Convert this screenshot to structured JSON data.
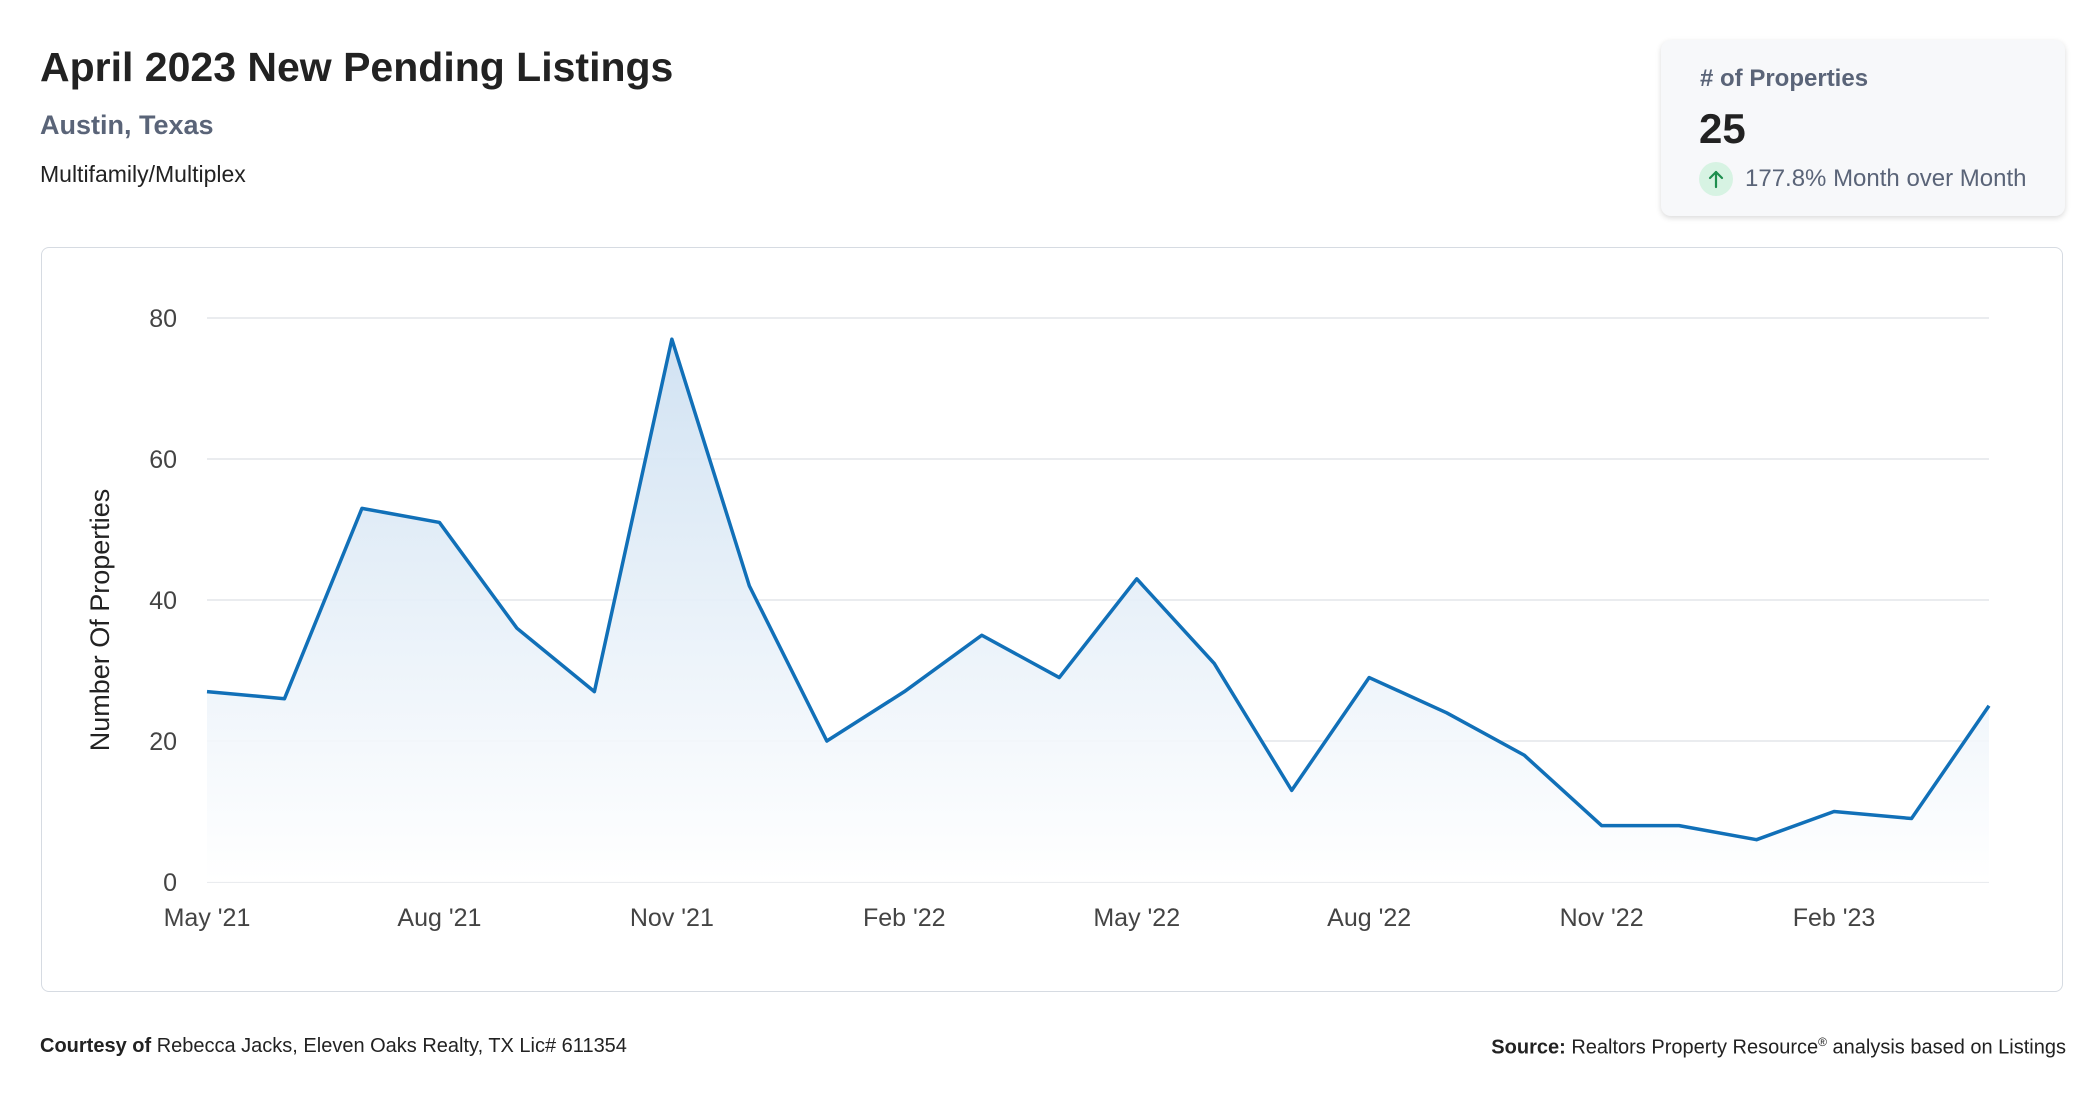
{
  "header": {
    "title": "April 2023 New Pending Listings",
    "location": "Austin, Texas",
    "property_type": "Multifamily/Multiplex"
  },
  "kpi": {
    "label": "# of Properties",
    "value": "25",
    "change_text": "177.8% Month over Month",
    "change_direction": "up",
    "icon": "arrow-up-icon",
    "colors": {
      "up_icon": "#1e8e4e",
      "up_icon_bg": "#d7f3e3"
    }
  },
  "chart_data": {
    "type": "area",
    "ylabel": "Number Of Properties",
    "xlabel": "",
    "ylim": [
      0,
      80
    ],
    "yticks": [
      0,
      20,
      40,
      60,
      80
    ],
    "grid": true,
    "x": [
      "May '21",
      "Jun '21",
      "Jul '21",
      "Aug '21",
      "Sep '21",
      "Oct '21",
      "Nov '21",
      "Dec '21",
      "Jan '22",
      "Feb '22",
      "Mar '22",
      "Apr '22",
      "May '22",
      "Jun '22",
      "Jul '22",
      "Aug '22",
      "Sep '22",
      "Oct '22",
      "Nov '22",
      "Dec '22",
      "Jan '23",
      "Feb '23",
      "Mar '23",
      "Apr '23"
    ],
    "xtick_labels": [
      "May '21",
      "Aug '21",
      "Nov '21",
      "Feb '22",
      "May '22",
      "Aug '22",
      "Nov '22",
      "Feb '23"
    ],
    "xtick_indices": [
      0,
      3,
      6,
      9,
      12,
      15,
      18,
      21
    ],
    "series": [
      {
        "values": [
          27,
          26,
          53,
          51,
          36,
          27,
          77,
          42,
          20,
          27,
          35,
          29,
          43,
          31,
          13,
          29,
          24,
          18,
          8,
          8,
          6,
          10,
          9,
          25
        ]
      }
    ],
    "colors": {
      "line": "#1170b8",
      "fill_top": "#cfe1f2",
      "fill_bottom": "#ffffff",
      "grid": "#e3e6ea",
      "tick_text": "#444444"
    }
  },
  "footer": {
    "courtesy_label": "Courtesy of",
    "courtesy_text": "Rebecca Jacks, Eleven Oaks Realty, TX Lic# 611354",
    "source_label": "Source:",
    "source_text_1": "Realtors Property Resource",
    "source_reg": "®",
    "source_text_2": "analysis based on Listings"
  }
}
